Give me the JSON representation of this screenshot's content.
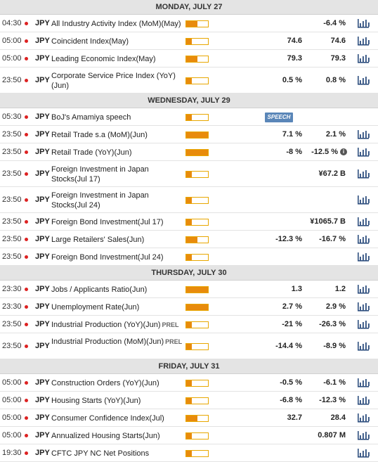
{
  "days": [
    {
      "title": "MONDAY, JULY 27",
      "events": [
        {
          "time": "04:30",
          "currency": "JPY",
          "name": "All Industry Activity Index (MoM)(May)",
          "importance": 0.5,
          "actual": "",
          "consensus": "-6.4 %",
          "chart": true
        },
        {
          "time": "05:00",
          "currency": "JPY",
          "name": "Coincident Index(May)",
          "importance": 0.25,
          "actual": "74.6",
          "consensus": "74.6",
          "chart": true
        },
        {
          "time": "05:00",
          "currency": "JPY",
          "name": "Leading Economic Index(May)",
          "importance": 0.5,
          "actual": "79.3",
          "consensus": "79.3",
          "chart": true
        },
        {
          "time": "23:50",
          "currency": "JPY",
          "name": "Corporate Service Price Index (YoY)(Jun)",
          "importance": 0.25,
          "actual": "0.5 %",
          "consensus": "0.8 %",
          "chart": true
        }
      ]
    },
    {
      "title": "WEDNESDAY, JULY 29",
      "events": [
        {
          "time": "05:30",
          "currency": "JPY",
          "name": "BoJ's Amamiya speech",
          "importance": 0.25,
          "actual": "",
          "consensus": "",
          "speech": "SPEECH",
          "chart": false
        },
        {
          "time": "23:50",
          "currency": "JPY",
          "name": "Retail Trade s.a (MoM)(Jun)",
          "importance": 1.0,
          "actual": "7.1 %",
          "consensus": "2.1 %",
          "chart": true
        },
        {
          "time": "23:50",
          "currency": "JPY",
          "name": "Retail Trade (YoY)(Jun)",
          "importance": 1.0,
          "actual": "-8 %",
          "consensus": "-12.5 %",
          "info": "i",
          "chart": true
        },
        {
          "time": "23:50",
          "currency": "JPY",
          "name": "Foreign Investment in Japan Stocks(Jul 17)",
          "importance": 0.25,
          "actual": "",
          "consensus": "¥67.2 B",
          "chart": true
        },
        {
          "time": "23:50",
          "currency": "JPY",
          "name": "Foreign Investment in Japan Stocks(Jul 24)",
          "importance": 0.25,
          "actual": "",
          "consensus": "",
          "chart": true
        },
        {
          "time": "23:50",
          "currency": "JPY",
          "name": "Foreign Bond Investment(Jul 17)",
          "importance": 0.25,
          "actual": "",
          "consensus": "¥1065.7 B",
          "chart": true
        },
        {
          "time": "23:50",
          "currency": "JPY",
          "name": "Large Retailers' Sales(Jun)",
          "importance": 0.5,
          "actual": "-12.3 %",
          "consensus": "-16.7 %",
          "chart": true
        },
        {
          "time": "23:50",
          "currency": "JPY",
          "name": "Foreign Bond Investment(Jul 24)",
          "importance": 0.25,
          "actual": "",
          "consensus": "",
          "chart": true
        }
      ]
    },
    {
      "title": "THURSDAY, JULY 30",
      "events": [
        {
          "time": "23:30",
          "currency": "JPY",
          "name": "Jobs / Applicants Ratio(Jun)",
          "importance": 1.0,
          "actual": "1.3",
          "consensus": "1.2",
          "chart": true
        },
        {
          "time": "23:30",
          "currency": "JPY",
          "name": "Unemployment Rate(Jun)",
          "importance": 1.0,
          "actual": "2.7 %",
          "consensus": "2.9 %",
          "chart": true
        },
        {
          "time": "23:50",
          "currency": "JPY",
          "name": "Industrial Production (YoY)(Jun)",
          "prel": "PREL",
          "importance": 0.25,
          "actual": "-21 %",
          "consensus": "-26.3 %",
          "chart": true
        },
        {
          "time": "23:50",
          "currency": "JPY",
          "name": "Industrial Production (MoM)(Jun)",
          "prel": "PREL",
          "importance": 0.25,
          "actual": "-14.4 %",
          "consensus": "-8.9 %",
          "chart": true
        }
      ]
    },
    {
      "title": "FRIDAY, JULY 31",
      "events": [
        {
          "time": "05:00",
          "currency": "JPY",
          "name": "Construction Orders (YoY)(Jun)",
          "importance": 0.25,
          "actual": "-0.5 %",
          "consensus": "-6.1 %",
          "chart": true
        },
        {
          "time": "05:00",
          "currency": "JPY",
          "name": "Housing Starts (YoY)(Jun)",
          "importance": 0.25,
          "actual": "-6.8 %",
          "consensus": "-12.3 %",
          "chart": true
        },
        {
          "time": "05:00",
          "currency": "JPY",
          "name": "Consumer Confidence Index(Jul)",
          "importance": 0.5,
          "actual": "32.7",
          "consensus": "28.4",
          "chart": true
        },
        {
          "time": "05:00",
          "currency": "JPY",
          "name": "Annualized Housing Starts(Jun)",
          "importance": 0.25,
          "actual": "",
          "consensus": "0.807 M",
          "chart": true
        },
        {
          "time": "19:30",
          "currency": "JPY",
          "name": "CFTC JPY NC Net Positions",
          "importance": 0.25,
          "actual": "",
          "consensus": "",
          "chart": true
        }
      ]
    }
  ],
  "colors": {
    "accent": "#e88b0c",
    "flag": "#dd2222",
    "chart_icon": "#2f4f7f",
    "header_bg": "#e4e4e4",
    "speech_bg": "#5a86b8"
  }
}
